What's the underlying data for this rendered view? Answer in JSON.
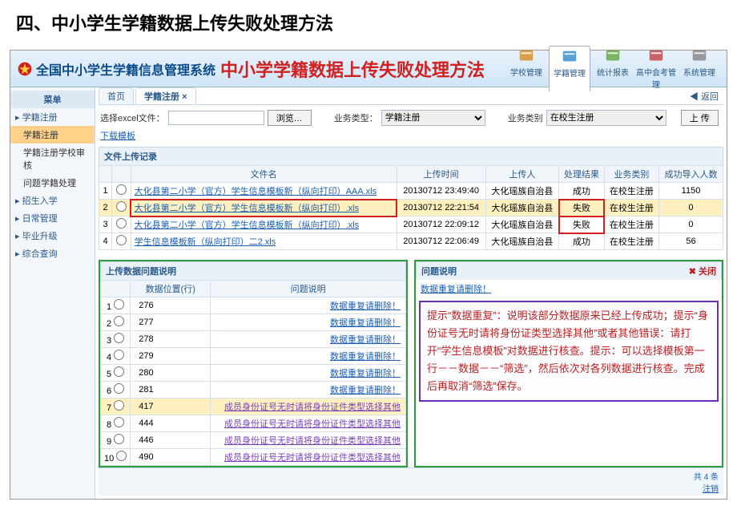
{
  "page_title": "四、中小学生学籍数据上传失败处理方法",
  "header": {
    "sys_name": "全国中小学生学籍信息管理系统",
    "sub_title": "中小学学籍数据上传失败处理方法",
    "nav": [
      {
        "label": "学校管理",
        "color": "#d89028"
      },
      {
        "label": "学籍管理",
        "color": "#3a8fd4",
        "active": true
      },
      {
        "label": "统计报表",
        "color": "#6aa84a"
      },
      {
        "label": "高中会考管理",
        "color": "#c04a4a"
      },
      {
        "label": "系统管理",
        "color": "#888"
      }
    ]
  },
  "sidebar": {
    "groups": [
      {
        "label": "菜单",
        "header": true
      },
      {
        "label": "学籍注册",
        "group": true
      },
      {
        "label": "学籍注册",
        "active": true
      },
      {
        "label": "学籍注册学校审核"
      },
      {
        "label": "问题学籍处理"
      },
      {
        "label": "招生入学",
        "group": true
      },
      {
        "label": "日常管理",
        "group": true
      },
      {
        "label": "毕业升级",
        "group": true
      },
      {
        "label": "综合查询",
        "group": true
      }
    ]
  },
  "tabs": {
    "home": "首页",
    "active": "学籍注册",
    "back": "◀ 返回"
  },
  "filter": {
    "file_label": "选择excel文件：",
    "browse": "浏览…",
    "biz1_label": "业务类型：",
    "biz1_value": "学籍注册",
    "biz2_label": "业务类别",
    "biz2_value": "在校生注册",
    "upload": "上 传",
    "download": "下载模板"
  },
  "files": {
    "section": "文件上传记录",
    "cols": [
      "",
      "",
      "文件名",
      "上传时间",
      "上传人",
      "处理结果",
      "业务类别",
      "成功导入人数"
    ],
    "rows": [
      {
        "n": "1",
        "name": "大化县第二小学（官方）学生信息模板新（纵向打印）AAA.xls",
        "time": "20130712 23:49:40",
        "who": "大化瑶族自治县",
        "res": "成功",
        "cat": "在校生注册",
        "cnt": "1150"
      },
      {
        "n": "2",
        "name": "大化县第二小学（官方）学生信息模板新（纵向打印）.xls",
        "time": "20130712 22:21:54",
        "who": "大化瑶族自治县",
        "res": "失败",
        "cat": "在校生注册",
        "cnt": "0",
        "hl": true,
        "box_name": true,
        "box_res": true
      },
      {
        "n": "3",
        "name": "大化县第二小学（官方）学生信息模板新（纵向打印）.xls",
        "time": "20130712 22:09:12",
        "who": "大化瑶族自治县",
        "res": "失败",
        "cat": "在校生注册",
        "cnt": "0",
        "box_res": true
      },
      {
        "n": "4",
        "name": "学生信息模板新（纵向打印）二2.xls",
        "time": "20130712 22:06:49",
        "who": "大化瑶族自治县",
        "res": "成功",
        "cat": "在校生注册",
        "cnt": "56"
      }
    ]
  },
  "problems": {
    "section": "上传数据问题说明",
    "cols": [
      "",
      "数据位置(行)",
      "问题说明"
    ],
    "msg_dup": "数据重复请删除！",
    "msg_id": "成员身份证号无时请将身份证件类型选择其他",
    "rows": [
      {
        "n": "1",
        "pos": "276",
        "type": "dup"
      },
      {
        "n": "2",
        "pos": "277",
        "type": "dup"
      },
      {
        "n": "3",
        "pos": "278",
        "type": "dup"
      },
      {
        "n": "4",
        "pos": "279",
        "type": "dup"
      },
      {
        "n": "5",
        "pos": "280",
        "type": "dup"
      },
      {
        "n": "6",
        "pos": "281",
        "type": "dup"
      },
      {
        "n": "7",
        "pos": "417",
        "type": "id",
        "hl": true
      },
      {
        "n": "8",
        "pos": "444",
        "type": "id"
      },
      {
        "n": "9",
        "pos": "446",
        "type": "id"
      },
      {
        "n": "10",
        "pos": "490",
        "type": "id"
      }
    ]
  },
  "right_panel": {
    "title": "问题说明",
    "close": "✖ 关闭",
    "sub": "数据重复请删除！",
    "annotation": "提示“数据重复”：说明该部分数据原来已经上传成功；提示“身份证号无时请将身份证类型选择其他”或者其他错误：请打开“学生信息模板”对数据进行核查。提示：可以选择模板第一行－－数据－－“筛选”，然后依次对各列数据进行核查。完成后再取消“筛选”保存。"
  },
  "footer": {
    "total": "共 4 条",
    "logout": "注销"
  }
}
